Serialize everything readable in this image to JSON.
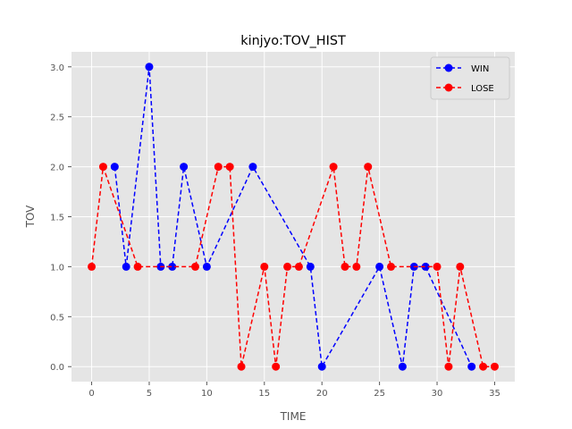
{
  "chart_data": {
    "type": "line",
    "title": "kinjyo:TOV_HIST",
    "xlabel": "TIME",
    "ylabel": "TOV",
    "xlim": [
      -1.75,
      36.75
    ],
    "ylim": [
      -0.15,
      3.15
    ],
    "xticks": [
      0,
      5,
      10,
      15,
      20,
      25,
      30,
      35
    ],
    "yticks": [
      0.0,
      0.5,
      1.0,
      1.5,
      2.0,
      2.5,
      3.0
    ],
    "xtick_labels": [
      "0",
      "5",
      "10",
      "15",
      "20",
      "25",
      "30",
      "35"
    ],
    "ytick_labels": [
      "0.0",
      "0.5",
      "1.0",
      "1.5",
      "2.0",
      "2.5",
      "3.0"
    ],
    "grid": true,
    "legend_position": "top-right",
    "series": [
      {
        "name": "WIN",
        "color": "#0000ff",
        "marker": "circle",
        "linestyle": "dashed",
        "x": [
          2,
          3,
          5,
          6,
          7,
          8,
          10,
          14,
          19,
          20,
          25,
          27,
          28,
          29,
          33
        ],
        "y": [
          2,
          1,
          3,
          1,
          1,
          2,
          1,
          2,
          1,
          0,
          1,
          0,
          1,
          1,
          0
        ]
      },
      {
        "name": "LOSE",
        "color": "#ff0000",
        "marker": "circle",
        "linestyle": "dashed",
        "x": [
          0,
          1,
          4,
          9,
          11,
          12,
          13,
          15,
          16,
          17,
          18,
          21,
          22,
          23,
          24,
          26,
          30,
          31,
          32,
          34,
          35
        ],
        "y": [
          1,
          2,
          1,
          1,
          2,
          2,
          0,
          1,
          0,
          1,
          1,
          2,
          1,
          1,
          2,
          1,
          1,
          0,
          1,
          0,
          0
        ]
      }
    ]
  }
}
